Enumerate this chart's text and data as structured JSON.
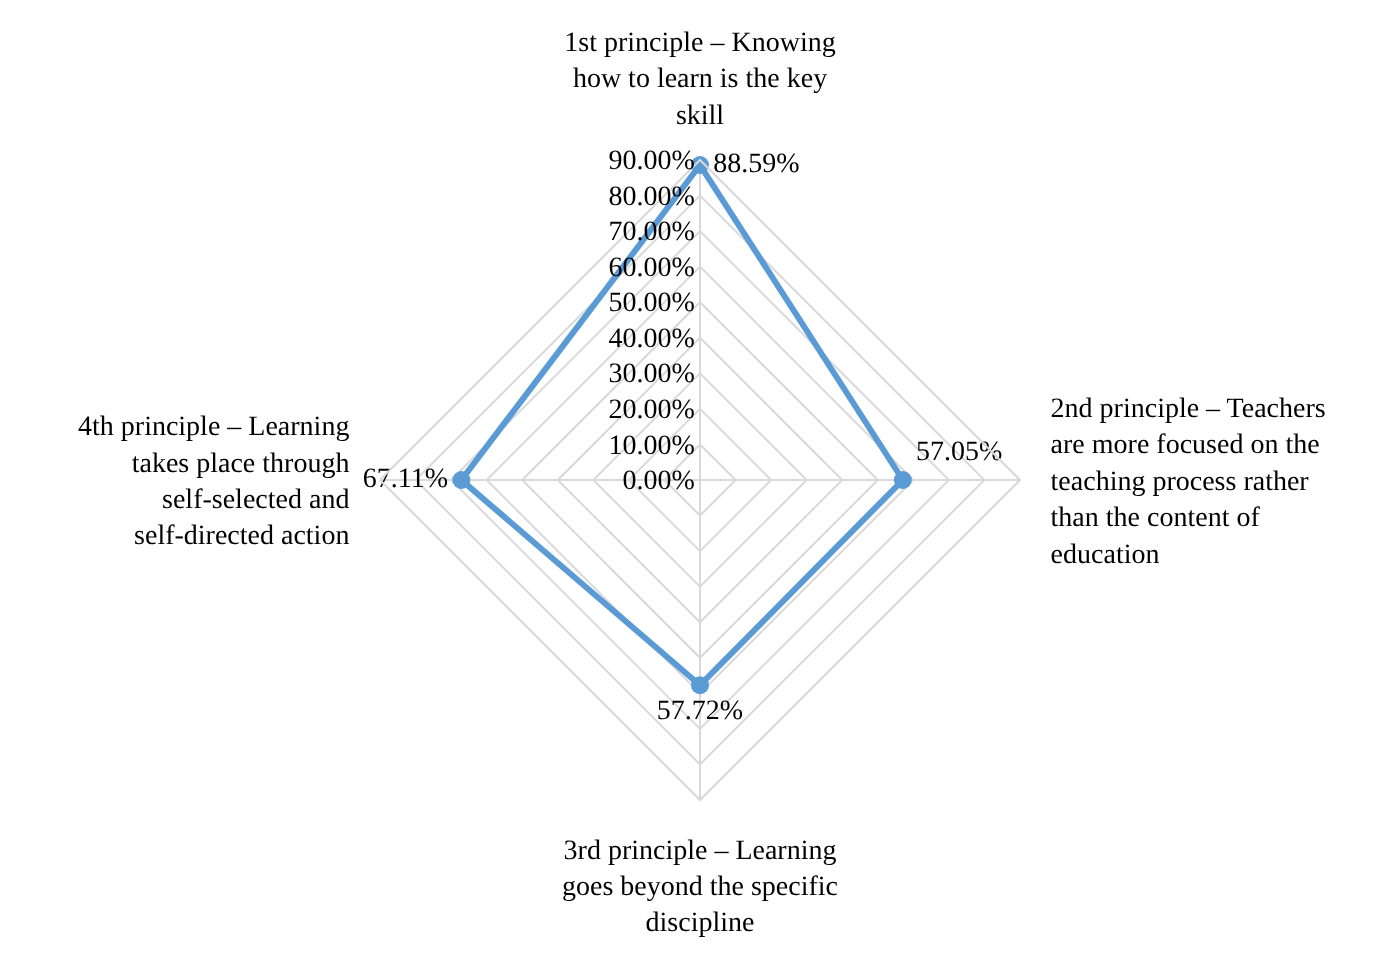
{
  "chart_data": {
    "type": "radar",
    "categories": [
      "1st principle – Knowing how to learn is the key skill",
      "2nd principle – Teachers are more focused on the teaching process rather than the content of education",
      "3rd principle – Learning goes beyond the specific discipline",
      "4th principle – Learning takes place through self-selected and self-directed action"
    ],
    "series": [
      {
        "color": "#5b9bd5",
        "values": [
          88.59,
          57.05,
          57.72,
          67.11
        ],
        "value_labels": [
          "88.59%",
          "57.05%",
          "57.72%",
          "67.11%"
        ]
      }
    ],
    "ylim": [
      0,
      90
    ],
    "yticks": [
      {
        "value": 0,
        "label": "0.00%"
      },
      {
        "value": 10,
        "label": "10.00%"
      },
      {
        "value": 20,
        "label": "20.00%"
      },
      {
        "value": 30,
        "label": "30.00%"
      },
      {
        "value": 40,
        "label": "40.00%"
      },
      {
        "value": 50,
        "label": "50.00%"
      },
      {
        "value": 60,
        "label": "60.00%"
      },
      {
        "value": 70,
        "label": "70.00%"
      },
      {
        "value": 80,
        "label": "80.00%"
      },
      {
        "value": 90,
        "label": "90.00%"
      }
    ],
    "grid": true,
    "marker": "circle",
    "line_style": "solid"
  }
}
